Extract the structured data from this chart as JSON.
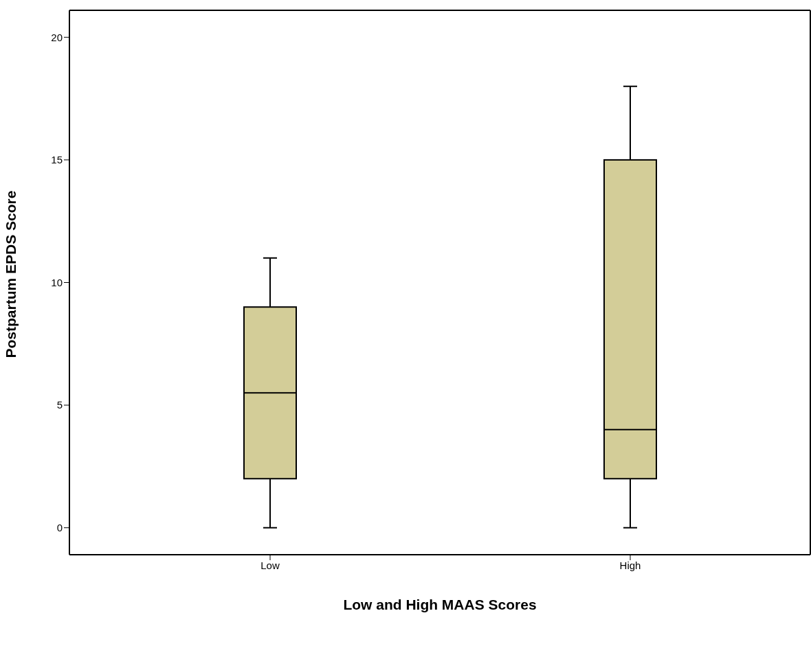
{
  "chart_data": {
    "type": "box",
    "xlabel": "Low and High MAAS Scores",
    "ylabel": "Postpartum EPDS Score",
    "categories": [
      "Low",
      "High"
    ],
    "color": "#d3cd98",
    "boxes": [
      {
        "low": 0,
        "q1": 2,
        "median": 5.5,
        "q3": 9,
        "high": 11
      },
      {
        "low": 0,
        "q1": 2,
        "median": 4,
        "q3": 15,
        "high": 18
      }
    ],
    "ylim": [
      -1.1,
      21.1
    ],
    "yticks": [
      0,
      5,
      10,
      15,
      20
    ]
  }
}
